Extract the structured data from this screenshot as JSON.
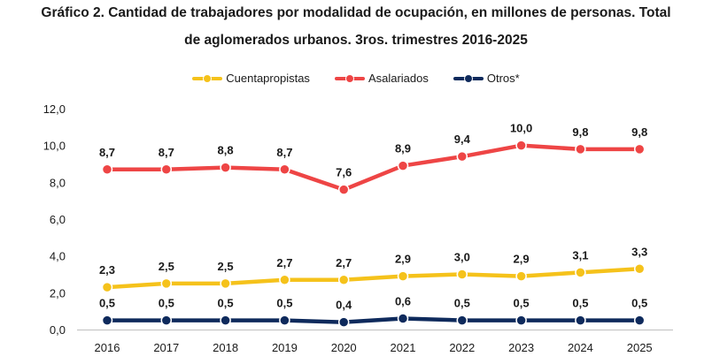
{
  "title_line1": "Gráfico 2. Cantidad de trabajadores por modalidad de ocupación, en millones de personas. Total",
  "title_line2": "de aglomerados urbanos. 3ros. trimestres 2016-2025",
  "chart_data": {
    "type": "line",
    "categories": [
      "2016",
      "2017",
      "2018",
      "2019",
      "2020",
      "2021",
      "2022",
      "2023",
      "2024",
      "2025"
    ],
    "series": [
      {
        "name": "Cuentapropistas",
        "color": "#F5C21B",
        "values": [
          2.3,
          2.5,
          2.5,
          2.7,
          2.7,
          2.9,
          3.0,
          2.9,
          3.1,
          3.3
        ],
        "labels": [
          "2,3",
          "2,5",
          "2,5",
          "2,7",
          "2,7",
          "2,9",
          "3,0",
          "2,9",
          "3,1",
          "3,3"
        ]
      },
      {
        "name": "Asalariados",
        "color": "#EE4545",
        "values": [
          8.7,
          8.7,
          8.8,
          8.7,
          7.6,
          8.9,
          9.4,
          10.0,
          9.8,
          9.8
        ],
        "labels": [
          "8,7",
          "8,7",
          "8,8",
          "8,7",
          "7,6",
          "8,9",
          "9,4",
          "10,0",
          "9,8",
          "9,8"
        ]
      },
      {
        "name": "Otros*",
        "color": "#0E2A5C",
        "values": [
          0.5,
          0.5,
          0.5,
          0.5,
          0.4,
          0.6,
          0.5,
          0.5,
          0.5,
          0.5
        ],
        "labels": [
          "0,5",
          "0,5",
          "0,5",
          "0,5",
          "0,4",
          "0,6",
          "0,5",
          "0,5",
          "0,5",
          "0,5"
        ]
      }
    ],
    "y_ticks": [
      0,
      2,
      4,
      6,
      8,
      10,
      12
    ],
    "y_tick_labels": [
      "0,0",
      "2,0",
      "4,0",
      "6,0",
      "8,0",
      "10,0",
      "12,0"
    ],
    "ylim": [
      0,
      12
    ],
    "grid": false,
    "legend": "top-center",
    "xlabel": "",
    "ylabel": ""
  }
}
